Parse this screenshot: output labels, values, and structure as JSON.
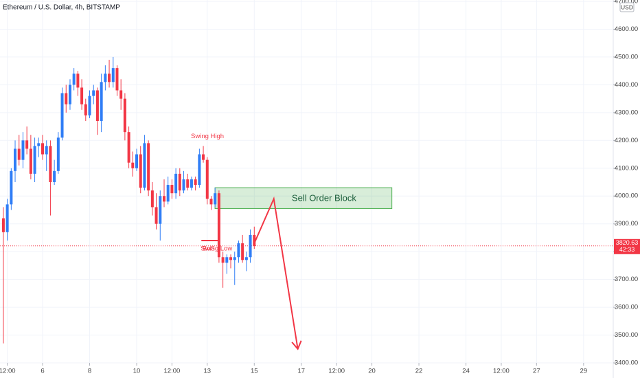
{
  "chart_data": {
    "type": "candlestick",
    "title": "Ethereum / U.S. Dollar, 4h, BITSTAMP",
    "currency": "USD",
    "up_color": "#2f7df6",
    "down_color": "#f23645",
    "grid": true,
    "xlim": [
      4.19,
      30.26
    ],
    "ylim": [
      3400,
      4700
    ],
    "xticks": [
      {
        "value": 4.5,
        "label": "12:00"
      },
      6,
      8,
      10,
      {
        "value": 11.5,
        "label": "12:00"
      },
      13,
      15,
      17,
      {
        "value": 18.5,
        "label": "12:00"
      },
      20,
      22,
      24,
      {
        "value": 25.5,
        "label": "12:00"
      },
      27,
      29
    ],
    "yticks": [
      {
        "value": 3400,
        "label": "3400.00"
      },
      {
        "value": 3500,
        "label": "3500.00"
      },
      {
        "value": 3600,
        "label": "3600.00"
      },
      {
        "value": 3700,
        "label": "3700.00"
      },
      {
        "value": 3800,
        "label": "3800.00"
      },
      {
        "value": 3900,
        "label": "3900.00"
      },
      {
        "value": 4000,
        "label": "4000.00"
      },
      {
        "value": 4100,
        "label": "4100.00"
      },
      {
        "value": 4200,
        "label": "4200.00"
      },
      {
        "value": 4300,
        "label": "4300.00"
      },
      {
        "value": 4400,
        "label": "4400.00"
      },
      {
        "value": 4500,
        "label": "4500.00"
      },
      {
        "value": 4600,
        "label": "4600.00"
      },
      {
        "value": 4700,
        "label": "4700.00"
      }
    ],
    "x": [
      4.333,
      4.5,
      4.667,
      4.833,
      5,
      5.167,
      5.333,
      5.5,
      5.667,
      5.833,
      6,
      6.167,
      6.333,
      6.5,
      6.667,
      6.833,
      7,
      7.167,
      7.333,
      7.5,
      7.667,
      7.833,
      8,
      8.167,
      8.333,
      8.5,
      8.667,
      8.833,
      9,
      9.167,
      9.333,
      9.5,
      9.667,
      9.833,
      10,
      10.167,
      10.333,
      10.5,
      10.667,
      10.833,
      11,
      11.167,
      11.333,
      11.5,
      11.667,
      11.833,
      12,
      12.167,
      12.333,
      12.5,
      12.667,
      12.833,
      13,
      13.167,
      13.333,
      13.5,
      13.667,
      13.833,
      14,
      14.167,
      14.333,
      14.5,
      14.667,
      14.833,
      15
    ],
    "open": [
      3920,
      3870,
      3970,
      4090,
      4170,
      4130,
      4200,
      4170,
      4080,
      4180,
      4190,
      4150,
      4180,
      4050,
      4090,
      4210,
      4370,
      4330,
      4400,
      4440,
      4390,
      4330,
      4290,
      4360,
      4380,
      4270,
      4410,
      4440,
      4410,
      4460,
      4380,
      4350,
      4230,
      4120,
      4100,
      4150,
      4030,
      4190,
      4020,
      3960,
      3900,
      4000,
      3980,
      4040,
      4010,
      4080,
      4020,
      4060,
      4030,
      4060,
      4040,
      4150,
      4130,
      3990,
      3970,
      4010,
      3780,
      3760,
      3780,
      3770,
      3780,
      3830,
      3770,
      3780,
      3860
    ],
    "high": [
      3960,
      3990,
      4100,
      4200,
      4220,
      4230,
      4250,
      4220,
      4210,
      4210,
      4220,
      4200,
      4200,
      4130,
      4230,
      4390,
      4400,
      4420,
      4460,
      4450,
      4420,
      4350,
      4380,
      4400,
      4390,
      4440,
      4470,
      4490,
      4500,
      4470,
      4420,
      4370,
      4250,
      4160,
      4170,
      4180,
      4220,
      4200,
      4050,
      4010,
      4020,
      4060,
      4070,
      4060,
      4100,
      4100,
      4090,
      4080,
      4070,
      4070,
      4170,
      4180,
      4140,
      4000,
      4030,
      4020,
      3800,
      3790,
      3790,
      3800,
      3840,
      3860,
      3800,
      3880,
      3890
    ],
    "low": [
      3470,
      3840,
      3950,
      4050,
      4110,
      4100,
      4150,
      4060,
      4050,
      4140,
      4130,
      4090,
      3930,
      4040,
      4080,
      4200,
      4300,
      4310,
      4380,
      4360,
      4310,
      4270,
      4280,
      4330,
      4220,
      4230,
      4380,
      4390,
      4390,
      4360,
      4310,
      4200,
      4100,
      4070,
      4090,
      4010,
      4020,
      4000,
      3930,
      3880,
      3840,
      3960,
      3970,
      3990,
      3990,
      4000,
      4010,
      4020,
      4020,
      4020,
      4030,
      4120,
      3970,
      3950,
      3960,
      3760,
      3670,
      3720,
      3740,
      3680,
      3760,
      3760,
      3730,
      3760,
      3810
    ],
    "close": [
      3870,
      3970,
      4090,
      4170,
      4130,
      4200,
      4170,
      4080,
      4180,
      4190,
      4150,
      4180,
      4050,
      4090,
      4210,
      4370,
      4330,
      4400,
      4440,
      4390,
      4330,
      4290,
      4360,
      4380,
      4270,
      4410,
      4440,
      4410,
      4460,
      4380,
      4350,
      4230,
      4120,
      4100,
      4150,
      4030,
      4190,
      4020,
      3960,
      3900,
      4000,
      3980,
      4040,
      4010,
      4080,
      4020,
      4060,
      4030,
      4060,
      4040,
      4150,
      4130,
      3990,
      3970,
      4010,
      3780,
      3760,
      3780,
      3770,
      3780,
      3830,
      3770,
      3780,
      3860,
      3820
    ],
    "last_price": 3820.63,
    "countdown": "42:33",
    "order_block": {
      "label": "Sell Order Block",
      "x": [
        13.33,
        20.85
      ],
      "y": [
        3955,
        4030
      ]
    },
    "bos_line": {
      "label": "BoS",
      "x": [
        12.75,
        13.47
      ],
      "y": [
        3840,
        3840
      ]
    },
    "swing_low_label": "Swing Low",
    "swing_high_label": "Swing High",
    "projection": {
      "x": [
        15.0,
        15.83,
        16.85
      ],
      "y": [
        3830,
        3990,
        3450
      ]
    }
  }
}
